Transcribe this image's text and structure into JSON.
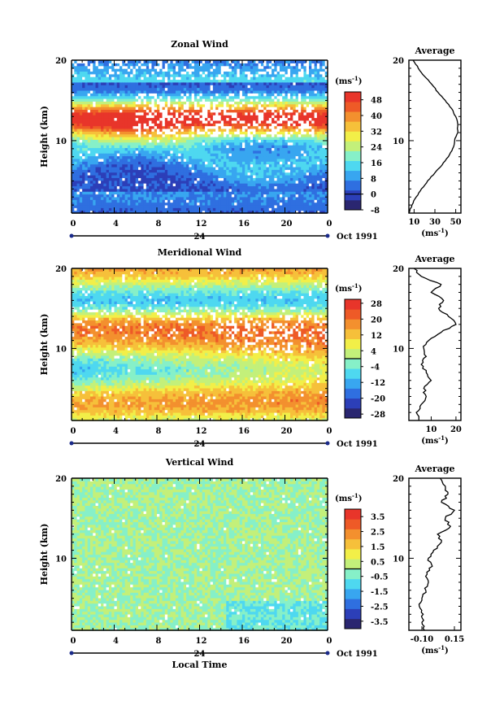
{
  "chart_data": [
    {
      "type": "heatmap",
      "title": "Zonal Wind",
      "ylabel": "Height (km)",
      "ylim": [
        1,
        20
      ],
      "y_ticks": [
        "20",
        "10"
      ],
      "x_ticks": [
        "0",
        "4",
        "8",
        "12",
        "16",
        "20",
        "0"
      ],
      "date_label": "24",
      "date_suffix": "Oct 1991",
      "xlabel": "",
      "colorbar": {
        "unit": "(ms",
        "unit_exp": "-1",
        "unit_close": ")",
        "labels": [
          "48",
          "40",
          "32",
          "24",
          "16",
          "8",
          "0",
          "-8"
        ],
        "range": [
          -8,
          52
        ]
      },
      "profile": {
        "title": "Average",
        "y_ticks": [
          "20",
          "10"
        ],
        "x_ticks": [
          "10",
          "30",
          "50"
        ],
        "xlim": [
          5,
          55
        ],
        "xlabel": "(ms",
        "xlabel_exp": "-1",
        "xlabel_close": ")",
        "height": [
          1.0,
          2.0,
          3.0,
          4.0,
          5.0,
          6.0,
          7.0,
          8.0,
          9.0,
          10.0,
          11.0,
          12.0,
          13.0,
          14.0,
          15.0,
          16.0,
          17.0,
          18.0,
          19.0,
          20.0
        ],
        "value": [
          5,
          8,
          12,
          17,
          23,
          30,
          37,
          43,
          47,
          49,
          52,
          52,
          50,
          46,
          40,
          33,
          27,
          20,
          14,
          9
        ]
      }
    },
    {
      "type": "heatmap",
      "title": "Meridional Wind",
      "ylabel": "Height (km)",
      "ylim": [
        1,
        20
      ],
      "y_ticks": [
        "20",
        "10"
      ],
      "x_ticks": [
        "0",
        "4",
        "8",
        "12",
        "16",
        "20",
        "0"
      ],
      "date_label": "24",
      "date_suffix": "Oct 1991",
      "xlabel": "",
      "colorbar": {
        "unit": "(ms",
        "unit_exp": "-1",
        "unit_close": ")",
        "labels": [
          "28",
          "20",
          "12",
          "4",
          "-4",
          "-12",
          "-20",
          "-28"
        ],
        "range": [
          -30,
          30
        ]
      },
      "profile": {
        "title": "Average",
        "y_ticks": [
          "20",
          "10"
        ],
        "x_ticks": [
          "10",
          "20"
        ],
        "xlim": [
          1,
          22
        ],
        "xlabel": "(ms",
        "xlabel_exp": "-1",
        "xlabel_close": ")",
        "height": [
          1.0,
          2.0,
          3.0,
          4.0,
          5.0,
          6.0,
          7.0,
          8.0,
          9.0,
          10.0,
          11.0,
          12.0,
          13.0,
          14.0,
          15.0,
          16.0,
          17.0,
          18.0,
          19.0,
          20.0
        ],
        "value": [
          5,
          4,
          6,
          8,
          7,
          10,
          8,
          6,
          8,
          7,
          9,
          14,
          20,
          17,
          13,
          15,
          10,
          14,
          6,
          3
        ]
      }
    },
    {
      "type": "heatmap",
      "title": "Vertical Wind",
      "ylabel": "Height (km)",
      "ylim": [
        1,
        20
      ],
      "y_ticks": [
        "20",
        "10"
      ],
      "x_ticks": [
        "0",
        "4",
        "8",
        "12",
        "16",
        "20",
        "0"
      ],
      "date_label": "24",
      "date_suffix": "Oct 1991",
      "xlabel": "Local Time",
      "colorbar": {
        "unit": "(ms",
        "unit_exp": "-1",
        "unit_close": ")",
        "labels": [
          "3.5",
          "2.5",
          "1.5",
          "0.5",
          "-0.5",
          "-1.5",
          "-2.5",
          "-3.5"
        ],
        "range": [
          -4,
          4
        ]
      },
      "profile": {
        "title": "Average",
        "y_ticks": [
          "20",
          "10"
        ],
        "x_ticks": [
          "-0.10",
          "0.15"
        ],
        "xlim": [
          -0.2,
          0.2
        ],
        "xlabel": "(ms",
        "xlabel_exp": "-1",
        "xlabel_close": ")",
        "height": [
          1.0,
          2.0,
          3.0,
          4.0,
          5.0,
          6.0,
          7.0,
          8.0,
          9.0,
          10.0,
          11.0,
          12.0,
          13.0,
          14.0,
          15.0,
          16.0,
          17.0,
          18.0,
          19.0,
          20.0
        ],
        "value": [
          -0.08,
          -0.1,
          -0.09,
          -0.12,
          -0.1,
          -0.07,
          -0.05,
          -0.06,
          -0.02,
          -0.05,
          -0.01,
          0.05,
          0.02,
          0.12,
          0.08,
          0.15,
          0.05,
          0.1,
          0.08,
          0.04
        ]
      }
    }
  ]
}
